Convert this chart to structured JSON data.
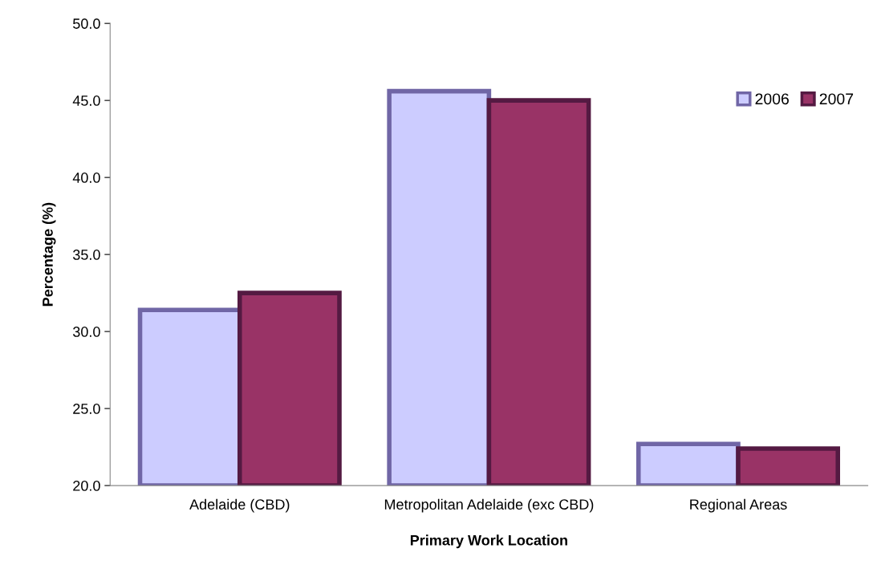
{
  "chart_data": {
    "type": "bar",
    "xlabel": "Primary Work Location",
    "ylabel": "Percentage (%)",
    "categories": [
      "Adelaide (CBD)",
      "Metropolitan Adelaide (exc CBD)",
      "Regional Areas"
    ],
    "series": [
      {
        "name": "2006",
        "color": "#ccccff",
        "values": [
          31.4,
          45.6,
          22.7
        ]
      },
      {
        "name": "2007",
        "color": "#993366",
        "values": [
          32.5,
          45.0,
          22.4
        ]
      }
    ],
    "ylim": [
      20,
      50
    ],
    "yticks": [
      {
        "value": 20,
        "label": "20.0"
      },
      {
        "value": 25,
        "label": "25.0"
      },
      {
        "value": 30,
        "label": "30.0"
      },
      {
        "value": 35,
        "label": "35.0"
      },
      {
        "value": 40,
        "label": "40.0"
      },
      {
        "value": 45,
        "label": "45.0"
      },
      {
        "value": 50,
        "label": "50.0"
      }
    ],
    "grid": false,
    "legend": "top right"
  }
}
